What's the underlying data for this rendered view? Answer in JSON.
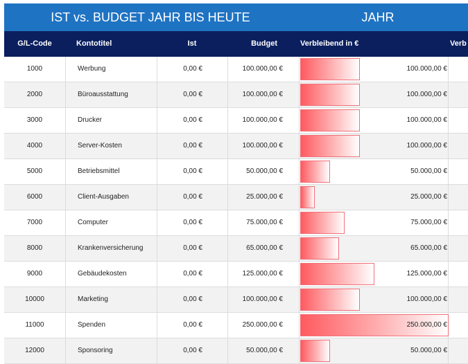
{
  "banner": {
    "title_left": "IST vs. BUDGET JAHR BIS HEUTE",
    "title_right": "JAHR"
  },
  "headers": {
    "code": "G/L-Code",
    "title": "Kontotitel",
    "ist": "Ist",
    "budget": "Budget",
    "remaining": "Verbleibend in €",
    "cut": "Verb"
  },
  "bar_max": 250000,
  "rows": [
    {
      "code": "1000",
      "title": "Werbung",
      "ist": "0,00 €",
      "budget": "100.000,00 €",
      "remaining": "100.000,00 €",
      "remaining_value": 100000
    },
    {
      "code": "2000",
      "title": "Büroausstattung",
      "ist": "0,00 €",
      "budget": "100.000,00 €",
      "remaining": "100.000,00 €",
      "remaining_value": 100000
    },
    {
      "code": "3000",
      "title": "Drucker",
      "ist": "0,00 €",
      "budget": "100.000,00 €",
      "remaining": "100.000,00 €",
      "remaining_value": 100000
    },
    {
      "code": "4000",
      "title": "Server-Kosten",
      "ist": "0,00 €",
      "budget": "100.000,00 €",
      "remaining": "100.000,00 €",
      "remaining_value": 100000
    },
    {
      "code": "5000",
      "title": "Betriebsmittel",
      "ist": "0,00 €",
      "budget": "50.000,00 €",
      "remaining": "50.000,00 €",
      "remaining_value": 50000
    },
    {
      "code": "6000",
      "title": "Client-Ausgaben",
      "ist": "0,00 €",
      "budget": "25.000,00 €",
      "remaining": "25.000,00 €",
      "remaining_value": 25000
    },
    {
      "code": "7000",
      "title": "Computer",
      "ist": "0,00 €",
      "budget": "75.000,00 €",
      "remaining": "75.000,00 €",
      "remaining_value": 75000
    },
    {
      "code": "8000",
      "title": "Krankenversicherung",
      "ist": "0,00 €",
      "budget": "65.000,00 €",
      "remaining": "65.000,00 €",
      "remaining_value": 65000
    },
    {
      "code": "9000",
      "title": "Gebäudekosten",
      "ist": "0,00 €",
      "budget": "125.000,00 €",
      "remaining": "125.000,00 €",
      "remaining_value": 125000
    },
    {
      "code": "10000",
      "title": "Marketing",
      "ist": "0,00 €",
      "budget": "100.000,00 €",
      "remaining": "100.000,00 €",
      "remaining_value": 100000
    },
    {
      "code": "11000",
      "title": "Spenden",
      "ist": "0,00 €",
      "budget": "250.000,00 €",
      "remaining": "250.000,00 €",
      "remaining_value": 250000
    },
    {
      "code": "12000",
      "title": "Sponsoring",
      "ist": "0,00 €",
      "budget": "50.000,00 €",
      "remaining": "50.000,00 €",
      "remaining_value": 50000
    }
  ],
  "colors": {
    "banner": "#1f73c3",
    "header": "#0b1f5e",
    "bar": "#ff5a5f",
    "row_alt": "#f2f2f2"
  }
}
